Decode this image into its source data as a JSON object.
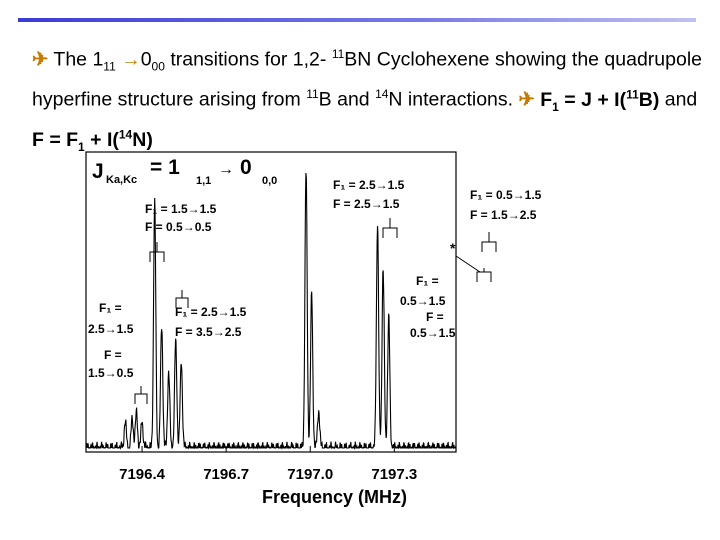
{
  "caption": {
    "bullet_icon": "airplane-bullet-icon",
    "t1": "The 1",
    "t1_sub": "11",
    "t2": "0",
    "t2_sub": "00",
    "t3": " transitions for 1,2- ",
    "t3_sup": "11",
    "t4": "BN Cyclohexene showing the quadrupole hyperfine structure arising from ",
    "t4_sup": "11",
    "t5": "B and ",
    "t5_sup": "14",
    "t6": "N interactions. ",
    "b1": "F",
    "b1_sub": "1",
    "b2": " = J + I(",
    "b2_sup": "11",
    "b3": "B)",
    "b4": " and ",
    "b5": "F = F",
    "b5_sub": "1",
    "b6": " + I(",
    "b6_sup": "14",
    "b7": "N)"
  },
  "chart_data": {
    "type": "line",
    "title_main": "J",
    "title_sub": "Ka,Kc",
    "title_eq": "= 1",
    "title_from_sub": "1,1",
    "title_arrow": "→",
    "title_to": "0",
    "title_to_sub": "0,0",
    "xlabel": "Frequency (MHz)",
    "xlim": [
      7196.2,
      7197.52
    ],
    "x_ticks": [
      "7196.4",
      "7196.7",
      "7197.0",
      "7197.3"
    ],
    "x_tick_values": [
      7196.4,
      7196.7,
      7197.0,
      7197.3
    ],
    "ylim": [
      0,
      1
    ],
    "peaks": [
      {
        "x": 7196.34,
        "h": 0.09
      },
      {
        "x": 7196.365,
        "h": 0.1
      },
      {
        "x": 7196.38,
        "h": 0.12
      },
      {
        "x": 7196.4,
        "h": 0.09
      },
      {
        "x": 7196.445,
        "h": 0.84
      },
      {
        "x": 7196.47,
        "h": 0.42
      },
      {
        "x": 7196.495,
        "h": 0.26
      },
      {
        "x": 7196.52,
        "h": 0.37
      },
      {
        "x": 7196.54,
        "h": 0.3
      },
      {
        "x": 7196.985,
        "h": 0.95
      },
      {
        "x": 7197.005,
        "h": 0.53
      },
      {
        "x": 7197.03,
        "h": 0.13
      },
      {
        "x": 7197.24,
        "h": 0.78
      },
      {
        "x": 7197.26,
        "h": 0.62
      },
      {
        "x": 7197.28,
        "h": 0.45
      }
    ],
    "annotations": [
      {
        "id": "f1-15-15",
        "line1": "F₁ = 1.5→1.5",
        "line2": "F = 0.5→0.5"
      },
      {
        "id": "f1-25-15-left",
        "line1": "F₁ =",
        "line2": "2.5→1.5"
      },
      {
        "id": "f-15-05-left",
        "line1": "F =",
        "line2": "1.5→0.5"
      },
      {
        "id": "f1-25-15-mid",
        "line1": "F₁ = 2.5→1.5",
        "line2": "F = 3.5→2.5"
      },
      {
        "id": "f1-25-15-top",
        "line1": "F₁ = 2.5→1.5",
        "line2": "F = 2.5→1.5"
      },
      {
        "id": "f1-05-15-top",
        "line1": "F₁ = 0.5→1.5",
        "line2": "F = 1.5→2.5"
      },
      {
        "id": "f1-05-15-star",
        "line1": "F₁ =",
        "line2": "0.5→1.5",
        "line3": "F =",
        "line4": "0.5→1.5"
      }
    ],
    "star_label": "*"
  },
  "colors": {
    "accent_line": "#3b3bd6",
    "bullet": "#c87a00",
    "trace": "#000000"
  }
}
